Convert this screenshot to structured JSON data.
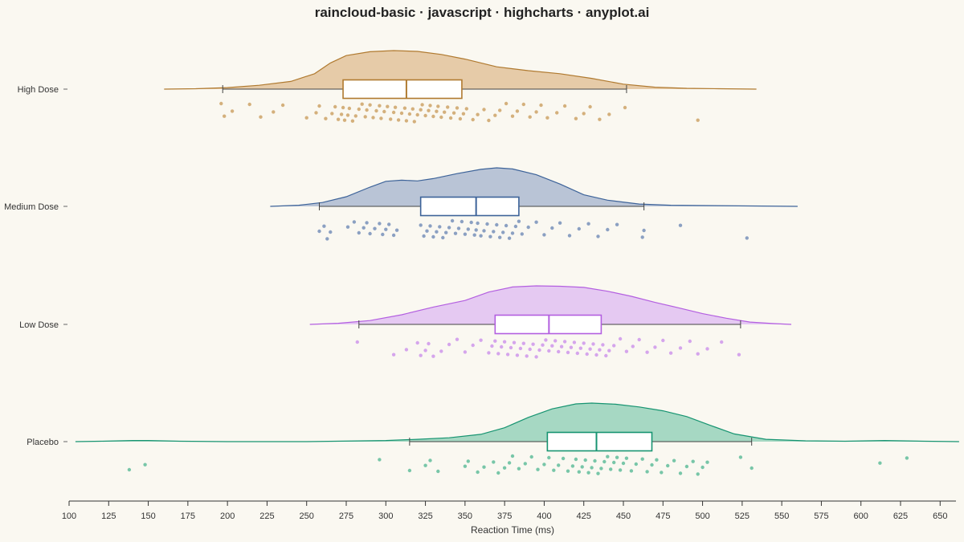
{
  "chart_data": {
    "type": "raincloud",
    "title": "raincloud-basic · javascript · highcharts · anyplot.ai",
    "xlabel": "Reaction Time (ms)",
    "ylabel": "",
    "xlim": [
      100,
      660
    ],
    "xticks": [
      100,
      125,
      150,
      175,
      200,
      225,
      250,
      275,
      300,
      325,
      350,
      375,
      400,
      425,
      450,
      475,
      500,
      525,
      550,
      575,
      600,
      625,
      650
    ],
    "grid": false,
    "legend": "none",
    "groups": [
      {
        "name": "High Dose",
        "color": "#b07a30",
        "fill": "#e6cba8",
        "dot": "#d4b07c",
        "box": {
          "whisker_low": 197,
          "q1": 273,
          "median": 313,
          "q3": 348,
          "whisker_high": 452
        },
        "density": [
          [
            160,
            0.0
          ],
          [
            180,
            0.01
          ],
          [
            200,
            0.04
          ],
          [
            220,
            0.1
          ],
          [
            240,
            0.2
          ],
          [
            255,
            0.4
          ],
          [
            265,
            0.68
          ],
          [
            275,
            0.87
          ],
          [
            290,
            0.97
          ],
          [
            305,
            1.0
          ],
          [
            320,
            0.98
          ],
          [
            335,
            0.9
          ],
          [
            350,
            0.78
          ],
          [
            370,
            0.58
          ],
          [
            390,
            0.48
          ],
          [
            410,
            0.4
          ],
          [
            430,
            0.28
          ],
          [
            450,
            0.13
          ],
          [
            470,
            0.05
          ],
          [
            490,
            0.02
          ],
          [
            510,
            0.01
          ],
          [
            534,
            0.0
          ]
        ],
        "points": [
          196,
          198,
          203,
          214,
          221,
          229,
          235,
          250,
          256,
          258,
          262,
          266,
          268,
          270,
          272,
          273,
          274,
          276,
          277,
          279,
          281,
          283,
          285,
          287,
          288,
          290,
          292,
          294,
          296,
          297,
          299,
          301,
          303,
          305,
          306,
          308,
          310,
          312,
          313,
          315,
          317,
          318,
          320,
          322,
          323,
          325,
          327,
          328,
          330,
          332,
          333,
          335,
          337,
          339,
          341,
          343,
          345,
          347,
          349,
          351,
          355,
          358,
          362,
          365,
          369,
          372,
          376,
          380,
          383,
          387,
          391,
          395,
          398,
          402,
          408,
          413,
          420,
          425,
          429,
          435,
          441,
          451,
          497
        ]
      },
      {
        "name": "Medium Dose",
        "color": "#3d6399",
        "fill": "#b9c4d6",
        "dot": "#8ba0c2",
        "box": {
          "whisker_low": 258,
          "q1": 322,
          "median": 357,
          "q3": 384,
          "whisker_high": 463
        },
        "density": [
          [
            227,
            0.0
          ],
          [
            245,
            0.03
          ],
          [
            260,
            0.1
          ],
          [
            275,
            0.25
          ],
          [
            290,
            0.5
          ],
          [
            300,
            0.65
          ],
          [
            310,
            0.68
          ],
          [
            320,
            0.66
          ],
          [
            330,
            0.72
          ],
          [
            345,
            0.85
          ],
          [
            360,
            0.96
          ],
          [
            370,
            1.0
          ],
          [
            380,
            0.97
          ],
          [
            395,
            0.82
          ],
          [
            410,
            0.58
          ],
          [
            425,
            0.3
          ],
          [
            440,
            0.16
          ],
          [
            460,
            0.06
          ],
          [
            480,
            0.03
          ],
          [
            500,
            0.02
          ],
          [
            530,
            0.01
          ],
          [
            560,
            0.0
          ]
        ],
        "points": [
          258,
          261,
          263,
          265,
          276,
          280,
          283,
          286,
          288,
          290,
          293,
          296,
          298,
          300,
          302,
          305,
          307,
          322,
          324,
          326,
          328,
          330,
          332,
          334,
          336,
          338,
          340,
          342,
          344,
          346,
          348,
          350,
          352,
          354,
          356,
          357,
          358,
          360,
          362,
          364,
          366,
          368,
          370,
          372,
          374,
          376,
          378,
          380,
          382,
          384,
          386,
          390,
          395,
          400,
          405,
          410,
          416,
          422,
          428,
          434,
          440,
          446,
          462,
          463,
          486,
          528
        ]
      },
      {
        "name": "Low Dose",
        "color": "#b35fe0",
        "fill": "#e5c9f2",
        "dot": "#d5a5ec",
        "box": {
          "whisker_low": 283,
          "q1": 369,
          "median": 403,
          "q3": 436,
          "whisker_high": 524
        },
        "density": [
          [
            252,
            0.0
          ],
          [
            270,
            0.03
          ],
          [
            290,
            0.1
          ],
          [
            310,
            0.25
          ],
          [
            330,
            0.45
          ],
          [
            350,
            0.62
          ],
          [
            365,
            0.84
          ],
          [
            380,
            0.97
          ],
          [
            395,
            1.0
          ],
          [
            410,
            0.99
          ],
          [
            425,
            0.96
          ],
          [
            440,
            0.86
          ],
          [
            455,
            0.73
          ],
          [
            470,
            0.57
          ],
          [
            485,
            0.43
          ],
          [
            500,
            0.28
          ],
          [
            515,
            0.16
          ],
          [
            530,
            0.06
          ],
          [
            545,
            0.02
          ],
          [
            556,
            0.0
          ]
        ],
        "points": [
          282,
          305,
          313,
          320,
          322,
          325,
          327,
          330,
          335,
          340,
          345,
          350,
          355,
          360,
          365,
          367,
          369,
          371,
          373,
          375,
          377,
          379,
          381,
          383,
          385,
          387,
          389,
          391,
          393,
          395,
          397,
          399,
          401,
          403,
          405,
          407,
          409,
          411,
          413,
          415,
          417,
          419,
          421,
          423,
          425,
          427,
          429,
          431,
          433,
          435,
          437,
          439,
          441,
          444,
          448,
          452,
          456,
          460,
          465,
          470,
          475,
          480,
          486,
          492,
          497,
          503,
          512,
          523
        ]
      },
      {
        "name": "Placebo",
        "color": "#179471",
        "fill": "#a6d8c3",
        "dot": "#78c6a8",
        "box": {
          "whisker_low": 315,
          "q1": 402,
          "median": 433,
          "q3": 468,
          "whisker_high": 531
        },
        "density": [
          [
            104,
            0.0
          ],
          [
            120,
            0.01
          ],
          [
            140,
            0.03
          ],
          [
            150,
            0.03
          ],
          [
            170,
            0.01
          ],
          [
            200,
            0.0
          ],
          [
            250,
            0.0
          ],
          [
            300,
            0.03
          ],
          [
            320,
            0.06
          ],
          [
            340,
            0.1
          ],
          [
            360,
            0.19
          ],
          [
            375,
            0.36
          ],
          [
            390,
            0.63
          ],
          [
            405,
            0.85
          ],
          [
            420,
            0.98
          ],
          [
            430,
            1.0
          ],
          [
            445,
            0.97
          ],
          [
            460,
            0.9
          ],
          [
            475,
            0.8
          ],
          [
            490,
            0.65
          ],
          [
            505,
            0.42
          ],
          [
            520,
            0.2
          ],
          [
            540,
            0.06
          ],
          [
            565,
            0.02
          ],
          [
            590,
            0.01
          ],
          [
            615,
            0.03
          ],
          [
            640,
            0.01
          ],
          [
            662,
            0.0
          ]
        ],
        "points": [
          138,
          148,
          296,
          315,
          325,
          328,
          333,
          350,
          352,
          358,
          362,
          368,
          371,
          375,
          378,
          380,
          384,
          388,
          392,
          396,
          400,
          403,
          406,
          409,
          412,
          415,
          418,
          420,
          422,
          424,
          426,
          428,
          430,
          432,
          434,
          436,
          438,
          440,
          442,
          444,
          446,
          448,
          450,
          452,
          455,
          458,
          462,
          465,
          468,
          471,
          474,
          478,
          482,
          486,
          490,
          494,
          497,
          500,
          503,
          524,
          531,
          612,
          629
        ]
      }
    ]
  }
}
